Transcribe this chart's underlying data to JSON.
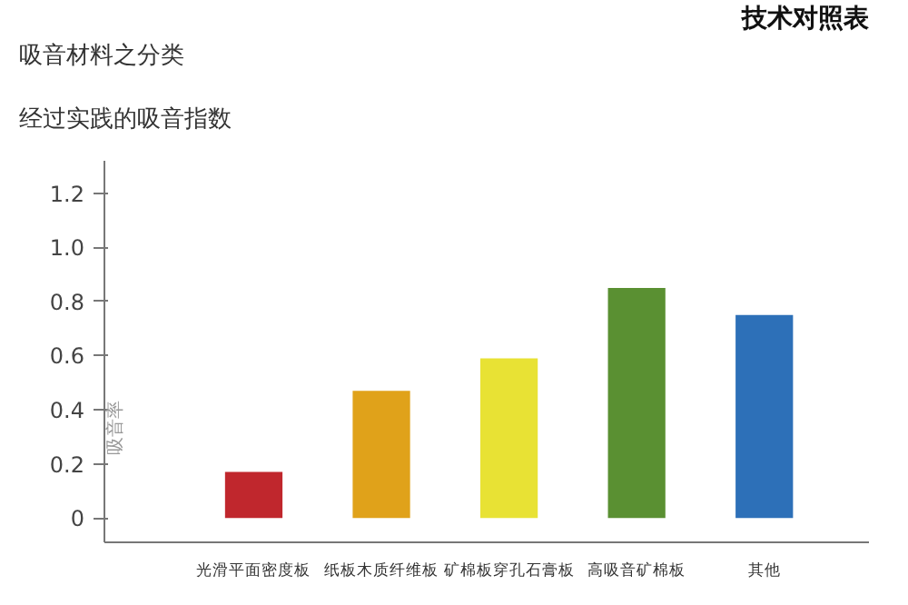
{
  "chart_data": {
    "type": "bar",
    "title": "吸音材料之分类",
    "subtitle": "经过实践的吸音指数",
    "annotations": [
      "技术对照表"
    ],
    "ylabel": "吸音率",
    "categories": [
      "光滑平面密度板",
      "纸板木质纤维板",
      "矿棉板穿孔石膏板",
      "高吸音矿棉板",
      "其他"
    ],
    "values": [
      0.17,
      0.47,
      0.59,
      0.85,
      0.75
    ],
    "colors": [
      "#c0272d",
      "#e0a21a",
      "#e8e234",
      "#5a9032",
      "#2d70b8"
    ],
    "ylim": [
      -0.09,
      1.32
    ],
    "yticks": [
      {
        "value": 0,
        "label": "0"
      },
      0.2,
      0.4,
      0.6,
      0.8,
      {
        "value": 1.0,
        "label": "1.0"
      },
      1.2
    ],
    "grid": false
  }
}
